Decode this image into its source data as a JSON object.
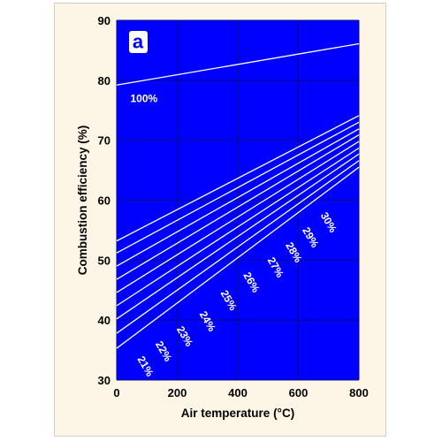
{
  "chart_data": {
    "type": "line",
    "panel_label": "a",
    "xlabel": "Air temperature (°C)",
    "ylabel": "Combustion efficiency (%)",
    "xlim": [
      0,
      800
    ],
    "ylim": [
      30,
      90
    ],
    "x_ticks": [
      "0",
      "200",
      "400",
      "600",
      "800"
    ],
    "y_ticks": [
      "30",
      "40",
      "50",
      "60",
      "70",
      "80",
      "90"
    ],
    "grid": true,
    "plot_color": "#0000ff",
    "line_color": "#ffffff",
    "series": [
      {
        "name": "100%",
        "x": [
          0,
          800
        ],
        "y": [
          79.2,
          86.1
        ]
      },
      {
        "name": "30%",
        "x": [
          0,
          800
        ],
        "y": [
          53.2,
          74.1
        ]
      },
      {
        "name": "29%",
        "x": [
          0,
          800
        ],
        "y": [
          51.2,
          73.0
        ]
      },
      {
        "name": "28%",
        "x": [
          0,
          800
        ],
        "y": [
          49.0,
          71.9
        ]
      },
      {
        "name": "27%",
        "x": [
          0,
          800
        ],
        "y": [
          46.8,
          70.9
        ]
      },
      {
        "name": "26%",
        "x": [
          0,
          800
        ],
        "y": [
          44.6,
          69.8
        ]
      },
      {
        "name": "25%",
        "x": [
          0,
          800
        ],
        "y": [
          42.4,
          68.7
        ]
      },
      {
        "name": "24%",
        "x": [
          0,
          800
        ],
        "y": [
          40.2,
          67.7
        ]
      },
      {
        "name": "23%",
        "x": [
          0,
          800
        ],
        "y": [
          37.8,
          66.6
        ]
      },
      {
        "name": "22%",
        "x": [
          0,
          800
        ],
        "y": [
          35.3,
          65.5
        ]
      }
    ],
    "annotations": [
      {
        "text": "100%",
        "x": 90,
        "y": 76.4,
        "rotate": 0
      },
      {
        "text": "30%",
        "x": 690,
        "y": 56.0,
        "rotate": 60
      },
      {
        "text": "29%",
        "x": 630,
        "y": 53.5,
        "rotate": 60
      },
      {
        "text": "28%",
        "x": 575,
        "y": 51.0,
        "rotate": 60
      },
      {
        "text": "27%",
        "x": 515,
        "y": 48.5,
        "rotate": 60
      },
      {
        "text": "26%",
        "x": 435,
        "y": 46.0,
        "rotate": 60
      },
      {
        "text": "25%",
        "x": 360,
        "y": 43.0,
        "rotate": 60
      },
      {
        "text": "24%",
        "x": 290,
        "y": 39.5,
        "rotate": 60
      },
      {
        "text": "23%",
        "x": 215,
        "y": 37.0,
        "rotate": 60
      },
      {
        "text": "22%",
        "x": 145,
        "y": 34.5,
        "rotate": 60
      },
      {
        "text": "21%",
        "x": 85,
        "y": 32.0,
        "rotate": 60
      }
    ]
  }
}
